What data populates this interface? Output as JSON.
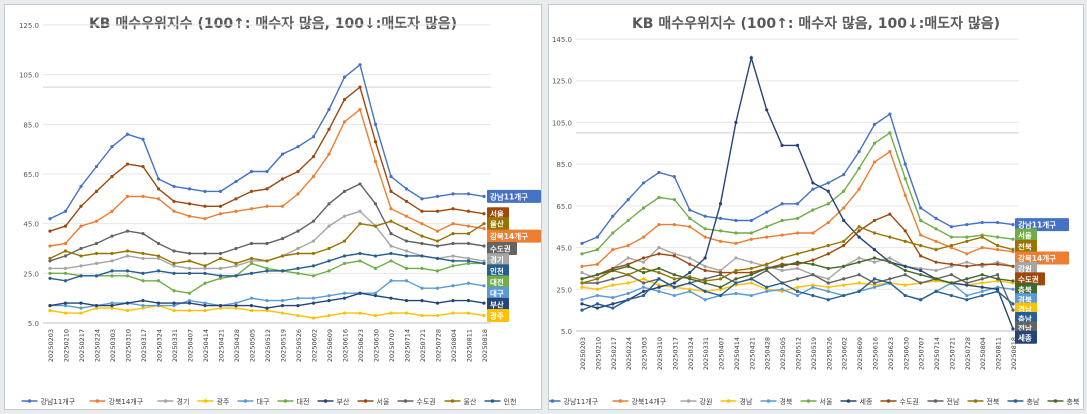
{
  "charts": [
    {
      "title": "KB 매수우위지수 (100↑: 매수자 많음, 100↓:매도자 많음)",
      "chart_data": {
        "type": "line",
        "ylim": [
          5,
          125
        ],
        "yticks": [
          "5.0",
          "25.0",
          "45.0",
          "65.0",
          "85.0",
          "105.0",
          "125.0"
        ],
        "reference_line": 100,
        "grid": true,
        "legend_position": "bottom",
        "x": [
          "20250203",
          "20250210",
          "20250217",
          "20250224",
          "20250303",
          "20250310",
          "20250317",
          "20250324",
          "20250331",
          "20250407",
          "20250414",
          "20250421",
          "20250428",
          "20250505",
          "20250512",
          "20250519",
          "20250526",
          "20250602",
          "20250609",
          "20250616",
          "20250623",
          "20250630",
          "20250707",
          "20250714",
          "20250721",
          "20250728",
          "20250804",
          "20250811",
          "20250818"
        ],
        "series": [
          {
            "name": "강남11개구",
            "color": "#4472c4",
            "values": [
              47,
              50,
              60,
              68,
              76,
              81,
              79,
              63,
              60,
              59,
              58,
              58,
              62,
              66,
              66,
              73,
              76,
              80,
              91,
              104,
              109,
              85,
              64,
              59,
              55,
              56,
              57,
              57,
              56
            ]
          },
          {
            "name": "강북14개구",
            "color": "#ed7d31",
            "values": [
              36,
              37,
              44,
              46,
              50,
              56,
              56,
              55,
              50,
              48,
              47,
              49,
              50,
              51,
              52,
              52,
              57,
              64,
              73,
              86,
              91,
              70,
              51,
              48,
              45,
              42,
              45,
              44,
              43
            ]
          },
          {
            "name": "경기",
            "color": "#a5a5a5",
            "values": [
              27,
              27,
              28,
              29,
              30,
              32,
              31,
              31,
              28,
              27,
              27,
              27,
              28,
              30,
              30,
              32,
              35,
              38,
              44,
              48,
              50,
              44,
              36,
              34,
              32,
              31,
              32,
              31,
              30
            ]
          },
          {
            "name": "광주",
            "color": "#ffc000",
            "values": [
              10,
              9,
              9,
              11,
              11,
              10,
              11,
              12,
              10,
              10,
              10,
              11,
              11,
              10,
              10,
              9,
              8,
              7,
              8,
              9,
              9,
              8,
              9,
              9,
              8,
              8,
              9,
              9,
              8
            ]
          },
          {
            "name": "대구",
            "color": "#5b9bd5",
            "values": [
              12,
              12,
              11,
              12,
              13,
              13,
              12,
              12,
              12,
              14,
              13,
              12,
              13,
              15,
              14,
              14,
              15,
              15,
              16,
              17,
              17,
              17,
              22,
              22,
              19,
              19,
              20,
              21,
              20
            ]
          },
          {
            "name": "대전",
            "color": "#70ad47",
            "values": [
              25,
              25,
              24,
              24,
              24,
              24,
              22,
              22,
              18,
              17,
              21,
              23,
              24,
              29,
              27,
              26,
              25,
              24,
              26,
              29,
              30,
              27,
              30,
              27,
              27,
              26,
              28,
              29,
              29
            ]
          },
          {
            "name": "부산",
            "color": "#264478",
            "values": [
              12,
              13,
              13,
              12,
              12,
              13,
              14,
              13,
              13,
              13,
              12,
              12,
              12,
              12,
              11,
              12,
              12,
              13,
              14,
              15,
              17,
              16,
              15,
              14,
              14,
              13,
              14,
              14,
              13
            ]
          },
          {
            "name": "서울",
            "color": "#9e480e",
            "values": [
              42,
              44,
              52,
              58,
              64,
              69,
              68,
              59,
              54,
              53,
              52,
              52,
              55,
              58,
              59,
              63,
              66,
              72,
              83,
              95,
              100,
              78,
              58,
              54,
              50,
              50,
              51,
              50,
              49
            ]
          },
          {
            "name": "수도권",
            "color": "#636363",
            "values": [
              30,
              32,
              35,
              37,
              40,
              42,
              41,
              37,
              34,
              33,
              33,
              33,
              35,
              37,
              37,
              39,
              42,
              46,
              53,
              58,
              61,
              53,
              41,
              38,
              37,
              36,
              37,
              37,
              36
            ]
          },
          {
            "name": "울산",
            "color": "#997300",
            "values": [
              31,
              34,
              32,
              33,
              33,
              34,
              33,
              32,
              29,
              30,
              28,
              31,
              29,
              31,
              30,
              32,
              33,
              33,
              35,
              38,
              45,
              44,
              46,
              43,
              40,
              38,
              41,
              41,
              45
            ]
          },
          {
            "name": "인천",
            "color": "#255e91",
            "values": [
              23,
              22,
              24,
              24,
              26,
              26,
              25,
              26,
              25,
              25,
              25,
              24,
              24,
              25,
              26,
              26,
              27,
              28,
              30,
              32,
              33,
              32,
              33,
              32,
              32,
              31,
              30,
              30,
              29
            ]
          }
        ],
        "end_labels": [
          {
            "text": "강남11개구",
            "color": "#4472c4",
            "y": 56
          },
          {
            "text": "서울",
            "color": "#9e480e",
            "y": 49
          },
          {
            "text": "울산",
            "color": "#997300",
            "y": 45
          },
          {
            "text": "강북14개구",
            "color": "#ed7d31",
            "y": 40
          },
          {
            "text": "수도권",
            "color": "#636363",
            "y": 35
          },
          {
            "text": "경기",
            "color": "#a5a5a5",
            "y": 30.5
          },
          {
            "text": "인천",
            "color": "#255e91",
            "y": 26
          },
          {
            "text": "대전",
            "color": "#70ad47",
            "y": 21.5
          },
          {
            "text": "대구",
            "color": "#5b9bd5",
            "y": 17
          },
          {
            "text": "부산",
            "color": "#264478",
            "y": 12.5
          },
          {
            "text": "광주",
            "color": "#ffc000",
            "y": 8
          }
        ]
      }
    },
    {
      "title": "KB 매수우위지수 (100↑: 매수자 많음, 100↓:매도자 많음)",
      "chart_data": {
        "type": "line",
        "ylim": [
          5,
          145
        ],
        "yticks": [
          "5.0",
          "25.0",
          "45.0",
          "65.0",
          "85.0",
          "105.0",
          "125.0",
          "145.0"
        ],
        "reference_line": 100,
        "grid": true,
        "legend_position": "bottom",
        "x": [
          "20250203",
          "20250210",
          "20250217",
          "20250224",
          "20250303",
          "20250310",
          "20250317",
          "20250324",
          "20250331",
          "20250407",
          "20250414",
          "20250421",
          "20250428",
          "20250505",
          "20250512",
          "20250519",
          "20250526",
          "20250602",
          "20250609",
          "20250616",
          "20250623",
          "20250630",
          "20250707",
          "20250714",
          "20250721",
          "20250728",
          "20250804",
          "20250811",
          "20250818"
        ],
        "series": [
          {
            "name": "강남11개구",
            "color": "#4472c4",
            "values": [
              47,
              50,
              60,
              68,
              76,
              81,
              79,
              63,
              60,
              59,
              58,
              58,
              62,
              66,
              66,
              73,
              76,
              80,
              91,
              104,
              109,
              85,
              64,
              59,
              55,
              56,
              57,
              57,
              56
            ]
          },
          {
            "name": "강북14개구",
            "color": "#ed7d31",
            "values": [
              36,
              37,
              44,
              46,
              50,
              56,
              56,
              55,
              50,
              48,
              47,
              49,
              50,
              51,
              52,
              52,
              57,
              64,
              73,
              86,
              91,
              70,
              51,
              48,
              45,
              42,
              45,
              44,
              43
            ]
          },
          {
            "name": "강원",
            "color": "#a5a5a5",
            "values": [
              33,
              30,
              35,
              40,
              38,
              45,
              42,
              40,
              36,
              34,
              40,
              38,
              36,
              34,
              35,
              32,
              30,
              36,
              40,
              38,
              40,
              36,
              35,
              34,
              36,
              38,
              36,
              38,
              36
            ]
          },
          {
            "name": "경남",
            "color": "#ffc000",
            "values": [
              26,
              25,
              27,
              28,
              30,
              27,
              26,
              25,
              24,
              25,
              27,
              28,
              25,
              24,
              26,
              27,
              26,
              27,
              28,
              27,
              28,
              27,
              28,
              29,
              28,
              27,
              28,
              29,
              28
            ]
          },
          {
            "name": "경북",
            "color": "#5b9bd5",
            "values": [
              20,
              22,
              21,
              23,
              26,
              24,
              22,
              24,
              20,
              22,
              23,
              22,
              24,
              25,
              22,
              26,
              24,
              22,
              24,
              26,
              28,
              22,
              20,
              24,
              28,
              22,
              24,
              26,
              25
            ]
          },
          {
            "name": "서울",
            "color": "#70ad47",
            "values": [
              42,
              44,
              52,
              58,
              64,
              69,
              68,
              59,
              54,
              53,
              52,
              52,
              55,
              58,
              59,
              63,
              66,
              72,
              83,
              95,
              100,
              78,
              58,
              54,
              50,
              50,
              51,
              50,
              49
            ]
          },
          {
            "name": "세종",
            "color": "#264478",
            "values": [
              18,
              16,
              18,
              20,
              24,
              26,
              28,
              33,
              40,
              66,
              105,
              136,
              111,
              94,
              94,
              76,
              72,
              58,
              50,
              44,
              38,
              36,
              34,
              30,
              28,
              27,
              26,
              25,
              6
            ]
          },
          {
            "name": "수도권",
            "color": "#9e480e",
            "values": [
              30,
              32,
              35,
              37,
              40,
              42,
              41,
              37,
              34,
              33,
              33,
              33,
              35,
              37,
              37,
              39,
              42,
              46,
              53,
              58,
              61,
              53,
              41,
              38,
              37,
              36,
              37,
              37,
              36
            ]
          },
          {
            "name": "전남",
            "color": "#636363",
            "values": [
              28,
              28,
              30,
              32,
              28,
              30,
              26,
              28,
              30,
              32,
              28,
              30,
              34,
              28,
              30,
              32,
              28,
              30,
              32,
              28,
              30,
              32,
              28,
              30,
              32,
              28,
              30,
              32,
              15
            ]
          },
          {
            "name": "전북",
            "color": "#997300",
            "values": [
              28,
              30,
              34,
              32,
              35,
              33,
              30,
              31,
              29,
              30,
              34,
              35,
              37,
              40,
              42,
              44,
              46,
              48,
              55,
              52,
              50,
              48,
              46,
              44,
              46,
              48,
              50,
              46,
              44
            ]
          },
          {
            "name": "충남",
            "color": "#255e91",
            "values": [
              15,
              18,
              16,
              20,
              22,
              30,
              26,
              28,
              24,
              22,
              28,
              30,
              26,
              28,
              24,
              22,
              20,
              22,
              24,
              30,
              28,
              22,
              20,
              24,
              22,
              20,
              22,
              24,
              18
            ]
          },
          {
            "name": "충북",
            "color": "#43682b",
            "values": [
              30,
              32,
              34,
              36,
              33,
              35,
              32,
              30,
              28,
              26,
              30,
              32,
              35,
              36,
              38,
              37,
              35,
              36,
              38,
              40,
              38,
              34,
              32,
              30,
              28,
              30,
              32,
              30,
              29
            ]
          }
        ],
        "end_labels": [
          {
            "text": "강남11개구",
            "color": "#4472c4",
            "y": 56
          },
          {
            "text": "서울",
            "color": "#70ad47",
            "y": 51
          },
          {
            "text": "전북",
            "color": "#997300",
            "y": 45.5
          },
          {
            "text": "강북14개구",
            "color": "#ed7d31",
            "y": 40
          },
          {
            "text": "강원",
            "color": "#a5a5a5",
            "y": 35
          },
          {
            "text": "수도권",
            "color": "#9e480e",
            "y": 30
          },
          {
            "text": "충북",
            "color": "#43682b",
            "y": 25
          },
          {
            "text": "경북",
            "color": "#5b9bd5",
            "y": 20
          },
          {
            "text": "경남",
            "color": "#ffc000",
            "y": 15.5
          },
          {
            "text": "충남",
            "color": "#255e91",
            "y": 11
          },
          {
            "text": "전남",
            "color": "#636363",
            "y": 6.5
          },
          {
            "text": "세종",
            "color": "#264478",
            "y": 2
          }
        ]
      }
    }
  ]
}
